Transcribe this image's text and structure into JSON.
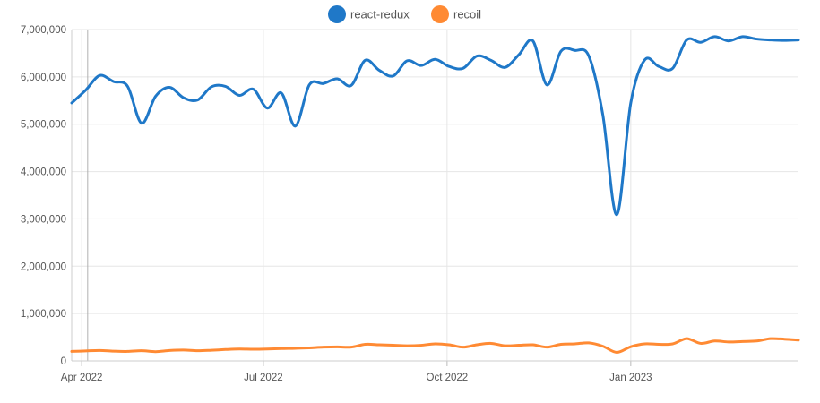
{
  "chart_data": {
    "type": "line",
    "title": "",
    "xlabel": "",
    "ylabel": "",
    "ylim": [
      0,
      7000000
    ],
    "y_ticks": [
      0,
      1000000,
      2000000,
      3000000,
      4000000,
      5000000,
      6000000,
      7000000
    ],
    "y_tick_labels": [
      "0",
      "1,000,000",
      "2,000,000",
      "3,000,000",
      "4,000,000",
      "5,000,000",
      "6,000,000",
      "7,000,000"
    ],
    "x_range": [
      "2022-03-27",
      "2023-03-26"
    ],
    "x_ticks": [
      {
        "date": "2022-04-01",
        "label": "Apr 2022"
      },
      {
        "date": "2022-07-01",
        "label": "Jul 2022"
      },
      {
        "date": "2022-10-01",
        "label": "Oct 2022"
      },
      {
        "date": "2023-01-01",
        "label": "Jan 2023"
      }
    ],
    "grid": true,
    "legend": "top-center",
    "x": [
      "2022-03-27",
      "2022-04-03",
      "2022-04-10",
      "2022-04-17",
      "2022-04-24",
      "2022-05-01",
      "2022-05-08",
      "2022-05-15",
      "2022-05-22",
      "2022-05-29",
      "2022-06-05",
      "2022-06-12",
      "2022-06-19",
      "2022-06-26",
      "2022-07-03",
      "2022-07-10",
      "2022-07-17",
      "2022-07-24",
      "2022-07-31",
      "2022-08-07",
      "2022-08-14",
      "2022-08-21",
      "2022-08-28",
      "2022-09-04",
      "2022-09-11",
      "2022-09-18",
      "2022-09-25",
      "2022-10-02",
      "2022-10-09",
      "2022-10-16",
      "2022-10-23",
      "2022-10-30",
      "2022-11-06",
      "2022-11-13",
      "2022-11-20",
      "2022-11-27",
      "2022-12-04",
      "2022-12-11",
      "2022-12-18",
      "2022-12-25",
      "2023-01-01",
      "2023-01-08",
      "2023-01-15",
      "2023-01-22",
      "2023-01-29",
      "2023-02-05",
      "2023-02-12",
      "2023-02-19",
      "2023-02-26",
      "2023-03-05",
      "2023-03-12",
      "2023-03-19",
      "2023-03-26"
    ],
    "series": [
      {
        "name": "react-redux",
        "color": "#1f78c8",
        "values": [
          5450000,
          5720000,
          6030000,
          5900000,
          5800000,
          5020000,
          5590000,
          5780000,
          5560000,
          5510000,
          5790000,
          5800000,
          5610000,
          5740000,
          5340000,
          5660000,
          4960000,
          5830000,
          5860000,
          5960000,
          5820000,
          6350000,
          6140000,
          6020000,
          6340000,
          6240000,
          6370000,
          6220000,
          6180000,
          6440000,
          6350000,
          6200000,
          6470000,
          6760000,
          5830000,
          6540000,
          6560000,
          6440000,
          5200000,
          3090000,
          5450000,
          6360000,
          6220000,
          6180000,
          6780000,
          6730000,
          6850000,
          6760000,
          6850000,
          6800000,
          6780000,
          6770000,
          6780000
        ]
      },
      {
        "name": "recoil",
        "color": "#ff8a33",
        "values": [
          200000,
          210000,
          220000,
          205000,
          200000,
          215000,
          195000,
          220000,
          230000,
          215000,
          225000,
          240000,
          250000,
          245000,
          250000,
          260000,
          265000,
          275000,
          290000,
          295000,
          290000,
          350000,
          340000,
          330000,
          320000,
          330000,
          360000,
          340000,
          290000,
          340000,
          370000,
          320000,
          330000,
          340000,
          290000,
          350000,
          360000,
          380000,
          310000,
          180000,
          300000,
          360000,
          350000,
          360000,
          470000,
          370000,
          420000,
          400000,
          410000,
          420000,
          470000,
          460000,
          440000
        ]
      }
    ]
  }
}
